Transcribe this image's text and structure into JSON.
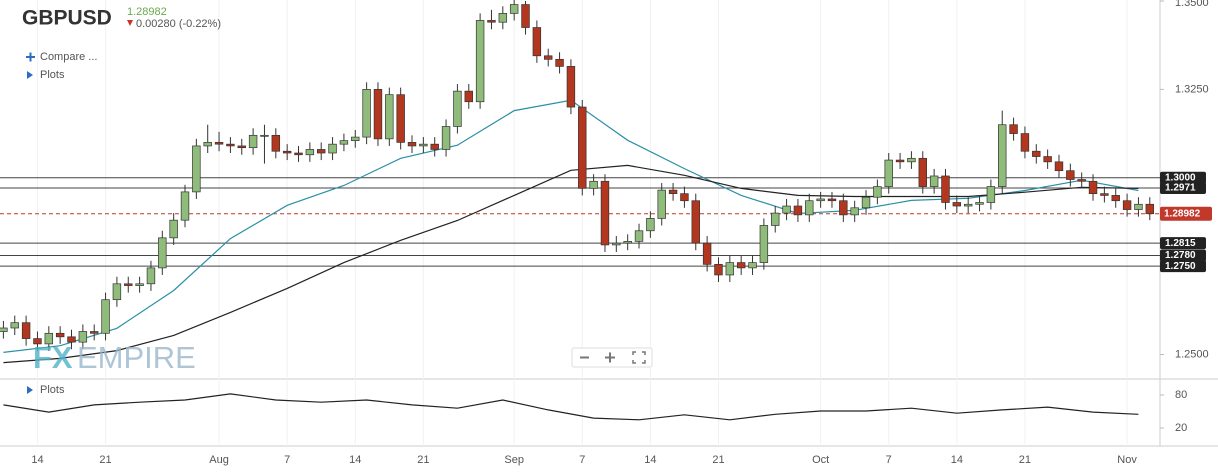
{
  "header": {
    "symbol": "GBPUSD",
    "price": "1.28982",
    "change": "0.00280 (-0.22%)",
    "compare": "Compare ...",
    "plots": "Plots",
    "logo_a": "FX",
    "logo_b": "EMPIRE"
  },
  "chart_data": {
    "type": "candlestick",
    "xlim": [
      -0.3,
      101.9
    ],
    "xticks": [
      {
        "value": 3,
        "label": "14"
      },
      {
        "value": 9,
        "label": "21"
      },
      {
        "value": 19,
        "label": "Aug"
      },
      {
        "value": 25,
        "label": "7"
      },
      {
        "value": 31,
        "label": "14"
      },
      {
        "value": 37,
        "label": "21"
      },
      {
        "value": 45,
        "label": "Sep"
      },
      {
        "value": 51,
        "label": "7"
      },
      {
        "value": 57,
        "label": "14"
      },
      {
        "value": 63,
        "label": "21"
      },
      {
        "value": 72,
        "label": "Oct"
      },
      {
        "value": 78,
        "label": "7"
      },
      {
        "value": 84,
        "label": "14"
      },
      {
        "value": 90,
        "label": "21"
      },
      {
        "value": 99,
        "label": "Nov"
      }
    ],
    "ylim": [
      1.2442,
      1.35
    ],
    "yticks": [
      {
        "value": 1.35,
        "label": "1.3500"
      },
      {
        "value": 1.325,
        "label": "1.3250"
      },
      {
        "value": 1.25,
        "label": "1.2500"
      }
    ],
    "up_color": "#8fbc7a",
    "down_color": "#b3361f",
    "open": [
      1.2565,
      1.2575,
      1.259,
      1.2545,
      1.253,
      1.256,
      1.255,
      1.2535,
      1.2565,
      1.256,
      1.2655,
      1.27,
      1.2695,
      1.27,
      1.2745,
      1.283,
      1.288,
      1.296,
      1.309,
      1.31,
      1.3095,
      1.309,
      1.3085,
      1.312,
      1.312,
      1.3075,
      1.307,
      1.3065,
      1.308,
      1.307,
      1.3095,
      1.3105,
      1.3115,
      1.325,
      1.311,
      1.3235,
      1.31,
      1.309,
      1.3095,
      1.308,
      1.3145,
      1.3245,
      1.3215,
      1.3445,
      1.344,
      1.3465,
      1.349,
      1.3425,
      1.3345,
      1.3335,
      1.3315,
      1.32,
      1.297,
      1.299,
      1.281,
      1.2815,
      1.282,
      1.285,
      1.2885,
      1.2965,
      1.2955,
      1.2935,
      1.2815,
      1.2755,
      1.2725,
      1.276,
      1.2745,
      1.276,
      1.2865,
      1.29,
      1.292,
      1.2895,
      1.2935,
      1.294,
      1.2935,
      1.2895,
      1.2915,
      1.2945,
      1.2975,
      1.305,
      1.3045,
      1.3055,
      1.2975,
      1.3005,
      1.293,
      1.292,
      1.2925,
      1.293,
      1.2975,
      1.315,
      1.3125,
      1.3075,
      1.306,
      1.3045,
      1.302,
      1.2995,
      1.299,
      1.2955,
      1.295,
      1.2935,
      1.291,
      1.2925
    ],
    "high": [
      1.2595,
      1.261,
      1.261,
      1.2565,
      1.258,
      1.258,
      1.257,
      1.2585,
      1.2585,
      1.2675,
      1.272,
      1.272,
      1.272,
      1.2765,
      1.285,
      1.29,
      1.298,
      1.311,
      1.315,
      1.313,
      1.3115,
      1.311,
      1.314,
      1.315,
      1.314,
      1.3095,
      1.309,
      1.31,
      1.31,
      1.3115,
      1.3125,
      1.3135,
      1.327,
      1.327,
      1.3255,
      1.3255,
      1.312,
      1.3115,
      1.3115,
      1.3165,
      1.3265,
      1.3265,
      1.3465,
      1.3475,
      1.3485,
      1.3525,
      1.35,
      1.3445,
      1.3365,
      1.3355,
      1.3335,
      1.322,
      1.301,
      1.301,
      1.2835,
      1.284,
      1.287,
      1.2905,
      1.2985,
      1.2985,
      1.2975,
      1.2955,
      1.2835,
      1.2775,
      1.278,
      1.278,
      1.278,
      1.2885,
      1.292,
      1.294,
      1.294,
      1.2955,
      1.296,
      1.296,
      1.2955,
      1.2935,
      1.2965,
      1.2995,
      1.307,
      1.307,
      1.3075,
      1.3075,
      1.3025,
      1.3025,
      1.295,
      1.2945,
      1.295,
      1.2995,
      1.319,
      1.317,
      1.3145,
      1.3095,
      1.308,
      1.3065,
      1.304,
      1.3015,
      1.301,
      1.2975,
      1.297,
      1.2955,
      1.2945,
      1.2945
    ],
    "low": [
      1.2545,
      1.2555,
      1.2525,
      1.251,
      1.251,
      1.253,
      1.2515,
      1.2515,
      1.254,
      1.254,
      1.2635,
      1.2675,
      1.2675,
      1.268,
      1.2725,
      1.281,
      1.286,
      1.294,
      1.307,
      1.3075,
      1.307,
      1.3065,
      1.3065,
      1.304,
      1.3055,
      1.305,
      1.3045,
      1.3045,
      1.305,
      1.305,
      1.3075,
      1.3085,
      1.3095,
      1.309,
      1.309,
      1.308,
      1.307,
      1.307,
      1.306,
      1.306,
      1.3125,
      1.3195,
      1.3195,
      1.342,
      1.342,
      1.3445,
      1.3405,
      1.3325,
      1.3315,
      1.3295,
      1.318,
      1.295,
      1.295,
      1.279,
      1.279,
      1.2795,
      1.28,
      1.283,
      1.2865,
      1.2935,
      1.2915,
      1.2795,
      1.2735,
      1.2705,
      1.2705,
      1.2725,
      1.2725,
      1.274,
      1.2845,
      1.288,
      1.2875,
      1.2875,
      1.2915,
      1.2915,
      1.2875,
      1.2875,
      1.2895,
      1.2925,
      1.2955,
      1.3025,
      1.3025,
      1.2955,
      1.2955,
      1.291,
      1.29,
      1.29,
      1.2905,
      1.291,
      1.2955,
      1.3105,
      1.3055,
      1.304,
      1.3025,
      1.3,
      1.2975,
      1.297,
      1.2935,
      1.293,
      1.2915,
      1.289,
      1.289,
      1.288
    ],
    "close": [
      1.2575,
      1.259,
      1.2545,
      1.253,
      1.256,
      1.255,
      1.2535,
      1.2565,
      1.256,
      1.2655,
      1.27,
      1.2695,
      1.27,
      1.2745,
      1.283,
      1.288,
      1.296,
      1.309,
      1.31,
      1.3095,
      1.309,
      1.3085,
      1.312,
      1.312,
      1.3075,
      1.307,
      1.3065,
      1.308,
      1.307,
      1.3095,
      1.3105,
      1.3115,
      1.325,
      1.311,
      1.3235,
      1.31,
      1.309,
      1.3095,
      1.308,
      1.3145,
      1.3245,
      1.3215,
      1.3445,
      1.344,
      1.3465,
      1.349,
      1.3425,
      1.3345,
      1.3335,
      1.3315,
      1.32,
      1.297,
      1.299,
      1.281,
      1.2815,
      1.282,
      1.285,
      1.2885,
      1.2965,
      1.2955,
      1.2935,
      1.2815,
      1.2755,
      1.2725,
      1.276,
      1.2745,
      1.276,
      1.2865,
      1.29,
      1.292,
      1.2895,
      1.2935,
      1.294,
      1.2935,
      1.2895,
      1.2915,
      1.2945,
      1.2975,
      1.305,
      1.3045,
      1.3055,
      1.2975,
      1.3005,
      1.293,
      1.292,
      1.2925,
      1.293,
      1.2975,
      1.315,
      1.3125,
      1.3075,
      1.306,
      1.3045,
      1.302,
      1.2995,
      1.299,
      1.2955,
      1.295,
      1.2935,
      1.291,
      1.2925,
      1.28982
    ],
    "moving_averages": [
      {
        "color": "#2a8fa6",
        "x": [
          0,
          5,
          10,
          15,
          20,
          25,
          30,
          35,
          40,
          45,
          50,
          55,
          60,
          65,
          70,
          75,
          80,
          85,
          90,
          95,
          100
        ],
        "values": [
          1.2506,
          1.2525,
          1.2574,
          1.2681,
          1.2828,
          1.2922,
          1.2978,
          1.3055,
          1.3092,
          1.319,
          1.3219,
          1.3106,
          1.3026,
          1.295,
          1.2899,
          1.2908,
          1.2936,
          1.2942,
          1.2964,
          1.2993,
          1.2964
        ]
      },
      {
        "color": "#222222",
        "x": [
          0,
          5,
          10,
          15,
          20,
          25,
          30,
          35,
          40,
          45,
          50,
          55,
          60,
          65,
          70,
          75,
          80,
          85,
          90,
          95,
          100
        ],
        "values": [
          1.2477,
          1.2489,
          1.2511,
          1.2554,
          1.2619,
          1.2687,
          1.276,
          1.2823,
          1.2879,
          1.295,
          1.3021,
          1.3035,
          1.3007,
          1.297,
          1.295,
          1.2947,
          1.2947,
          1.2947,
          1.2959,
          1.2973,
          1.297
        ]
      }
    ],
    "levels": [
      {
        "value": 1.3,
        "label": "1.3000"
      },
      {
        "value": 1.2971,
        "label": "1.2971"
      },
      {
        "value": 1.2815,
        "label": "1.2815"
      },
      {
        "value": 1.278,
        "label": "1.2780"
      },
      {
        "value": 1.275,
        "label": "1.2750"
      }
    ],
    "last": 1.28982,
    "last_color": "#c0392b",
    "indicator": {
      "label": "Plots",
      "color": "#222222",
      "ylim": [
        -10.9,
        107.3
      ],
      "yticks": [
        80,
        20
      ],
      "x": [
        0,
        4,
        8,
        12,
        16,
        20,
        24,
        28,
        32,
        36,
        40,
        44,
        48,
        52,
        56,
        60,
        64,
        68,
        72,
        76,
        80,
        84,
        88,
        92,
        96,
        100
      ],
      "values": [
        62,
        49,
        62,
        67,
        71,
        82,
        71,
        67,
        71,
        62,
        56,
        71,
        53,
        38,
        35,
        44,
        35,
        45,
        51,
        51,
        56,
        47,
        53,
        58,
        49,
        45
      ]
    }
  }
}
